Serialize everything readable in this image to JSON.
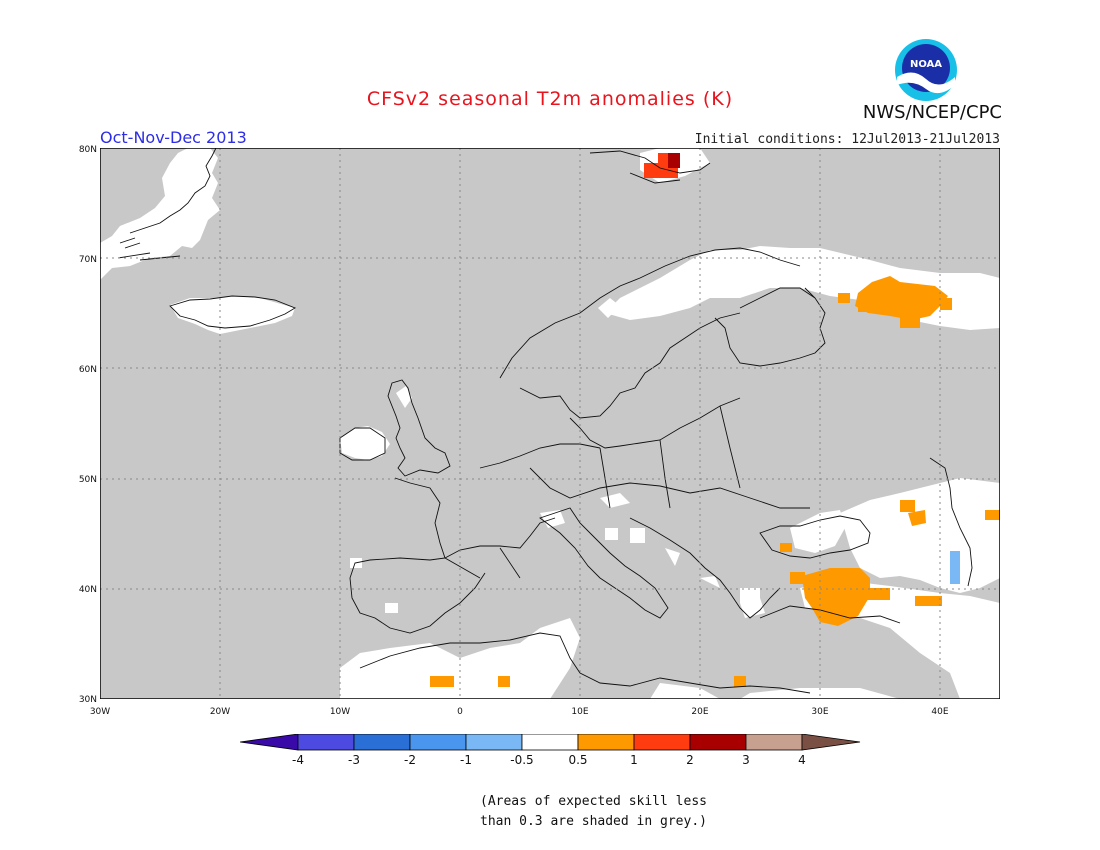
{
  "header": {
    "title": "CFSv2 seasonal T2m anomalies (K)",
    "season": "Oct-Nov-Dec 2013",
    "initial_conditions": "Initial conditions: 12Jul2013-21Jul2013",
    "org": "NWS/NCEP/CPC",
    "logo_text": "NOAA"
  },
  "map": {
    "lon_range": [
      -30,
      45
    ],
    "lat_range": [
      30,
      80
    ],
    "x_ticks": [
      "30W",
      "20W",
      "10W",
      "0",
      "10E",
      "20E",
      "30E",
      "40E"
    ],
    "y_ticks": [
      "30N",
      "40N",
      "50N",
      "60N",
      "70N",
      "80N"
    ],
    "background_color": "#c8c8c8",
    "grid": "dotted"
  },
  "colorbar": {
    "labels": [
      "-4",
      "-3",
      "-2",
      "-1",
      "-0.5",
      "0.5",
      "1",
      "2",
      "3",
      "4"
    ],
    "colors": [
      "#3a0aa8",
      "#4c4ae0",
      "#2a6fd6",
      "#4a96ee",
      "#7ab8f5",
      "#ffffff",
      "#ff9900",
      "#ff3b10",
      "#a80000",
      "#c8a090",
      "#7a5044"
    ]
  },
  "note": {
    "line1": "(Areas of expected skill less",
    "line2": "than 0.3 are shaded in grey.)"
  }
}
